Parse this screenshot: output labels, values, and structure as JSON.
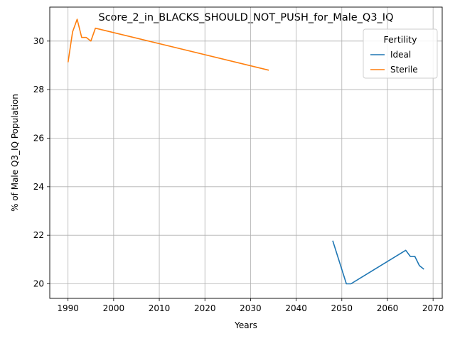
{
  "chart_data": {
    "type": "line",
    "title": "Score_2_in_BLACKS_SHOULD_NOT_PUSH_for_Male_Q3_IQ",
    "xlabel": "Years",
    "ylabel": "% of Male Q3_IQ Population",
    "xlim": [
      1986,
      2072
    ],
    "ylim": [
      19.4,
      31.4
    ],
    "xticks": [
      1990,
      2000,
      2010,
      2020,
      2030,
      2040,
      2050,
      2060,
      2070
    ],
    "yticks": [
      20,
      22,
      24,
      26,
      28,
      30
    ],
    "grid": true,
    "legend": {
      "title": "Fertility",
      "placement": "top-right"
    },
    "series": [
      {
        "name": "Ideal",
        "color": "#1f77b4",
        "x": [
          2048,
          2051,
          2052,
          2064,
          2065,
          2066,
          2067,
          2068
        ],
        "y": [
          21.78,
          20.0,
          20.0,
          21.38,
          21.13,
          21.13,
          20.75,
          20.6
        ]
      },
      {
        "name": "Sterile",
        "color": "#ff7f0e",
        "x": [
          1990,
          1991,
          1992,
          1993,
          1994,
          1995,
          1996,
          2034
        ],
        "y": [
          29.13,
          30.38,
          30.9,
          30.15,
          30.15,
          30.0,
          30.53,
          28.8
        ]
      }
    ]
  }
}
